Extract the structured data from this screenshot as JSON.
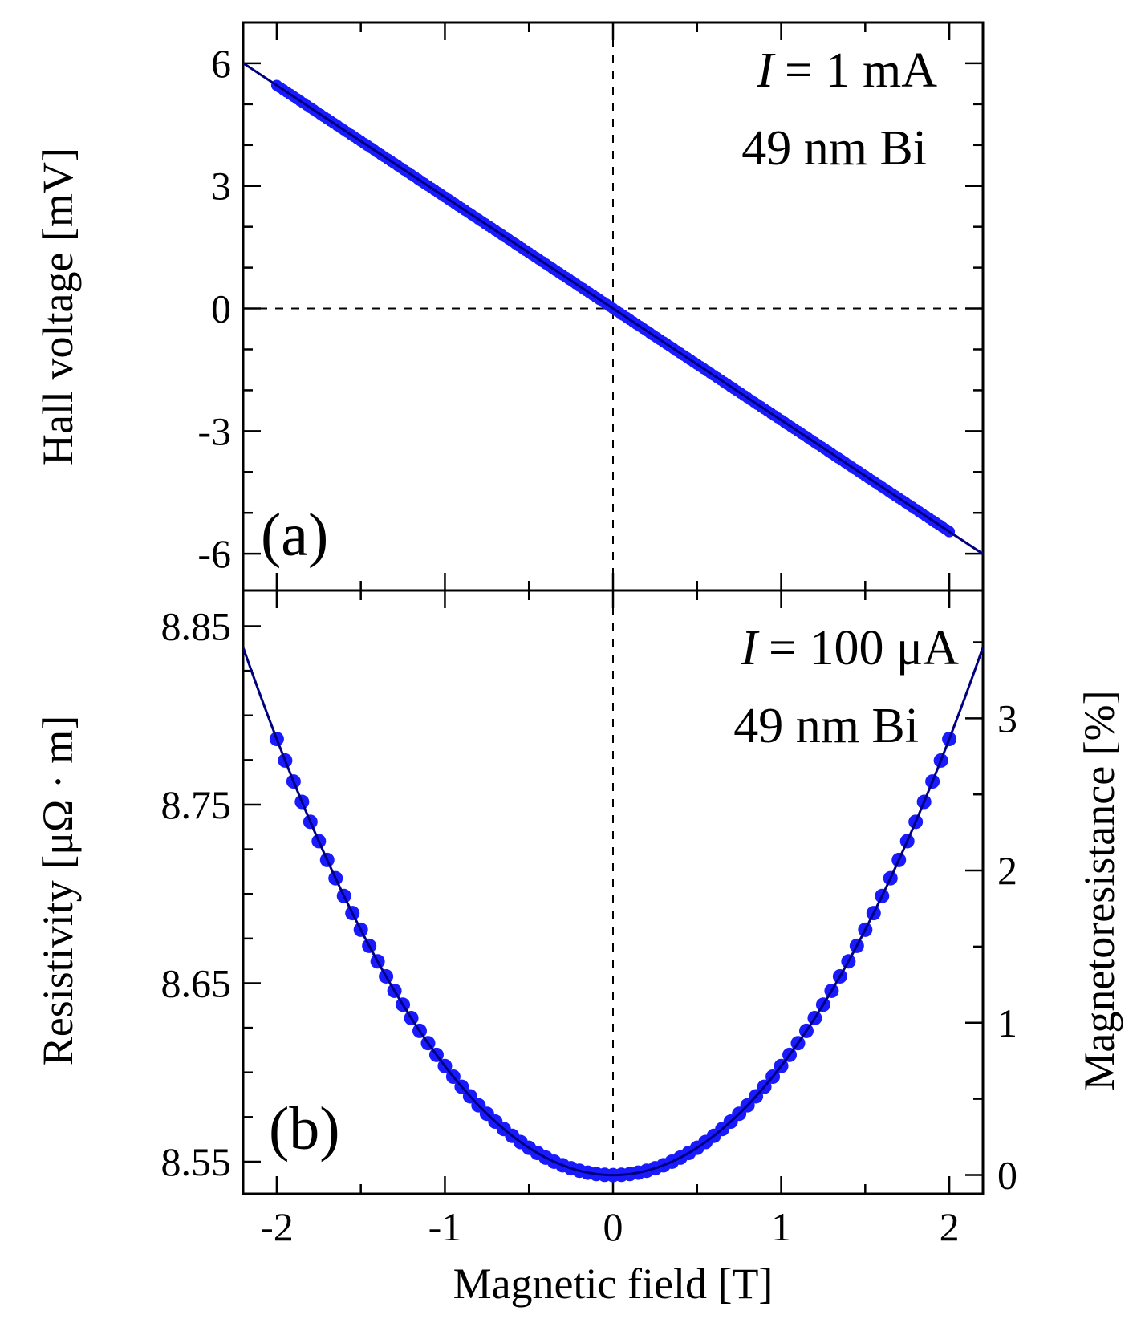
{
  "chart_data": [
    {
      "type": "scatter",
      "panel_label": "(a)",
      "ylabel": "Hall voltage [mV]",
      "xlim": [
        -2.2,
        2.2
      ],
      "ylim": [
        -6.9,
        7.0
      ],
      "yticks": [
        6,
        3,
        0,
        -3,
        -6
      ],
      "ytick_labels": [
        "6",
        "3",
        "0",
        "-3",
        "-6"
      ],
      "annotation": {
        "var": "I",
        "text": "= 1 mA",
        "line2": "49 nm Bi"
      },
      "series": [
        {
          "name": "data",
          "kind": "points",
          "color": "#1a1aff",
          "x_range": [
            -2.0,
            2.0
          ],
          "slope": -2.73,
          "intercept": 0.0
        },
        {
          "name": "fit",
          "kind": "line",
          "color": "#000080",
          "x_range": [
            -2.2,
            2.2
          ],
          "slope": -2.73,
          "intercept": 0.0
        }
      ]
    },
    {
      "type": "scatter",
      "panel_label": "(b)",
      "xlabel": "Magnetic field [T]",
      "ylabel": "Resistivity [μΩ · m]",
      "y2label": "Magnetoresistance [%]",
      "xlim": [
        -2.2,
        2.2
      ],
      "xticks": [
        -2,
        -1,
        0,
        1,
        2
      ],
      "xtick_labels": [
        "-2",
        "-1",
        "0",
        "1",
        "2"
      ],
      "ylim": [
        8.532,
        8.87
      ],
      "yticks": [
        8.85,
        8.75,
        8.65,
        8.55
      ],
      "ytick_labels": [
        "8.85",
        "8.75",
        "8.65",
        "8.55"
      ],
      "y2lim": [
        -0.124,
        3.84
      ],
      "y2ticks": [
        0,
        1,
        2,
        3
      ],
      "y2tick_labels": [
        "0",
        "1",
        "2",
        "3"
      ],
      "annotation": {
        "var": "I",
        "text": "= 100 μA",
        "line2": "49 nm Bi"
      },
      "series": [
        {
          "name": "data",
          "kind": "points",
          "color": "#1a1aff",
          "x_range": [
            -2.0,
            2.0
          ],
          "model": "rho0*(1+a*B^2)",
          "rho0": 8.5425,
          "a": 0.00715
        },
        {
          "name": "fit",
          "kind": "line",
          "color": "#000080",
          "x_range": [
            -2.2,
            2.2
          ],
          "model": "rho0*(1+a*B^2)",
          "rho0": 8.5425,
          "a": 0.00715
        }
      ]
    }
  ]
}
